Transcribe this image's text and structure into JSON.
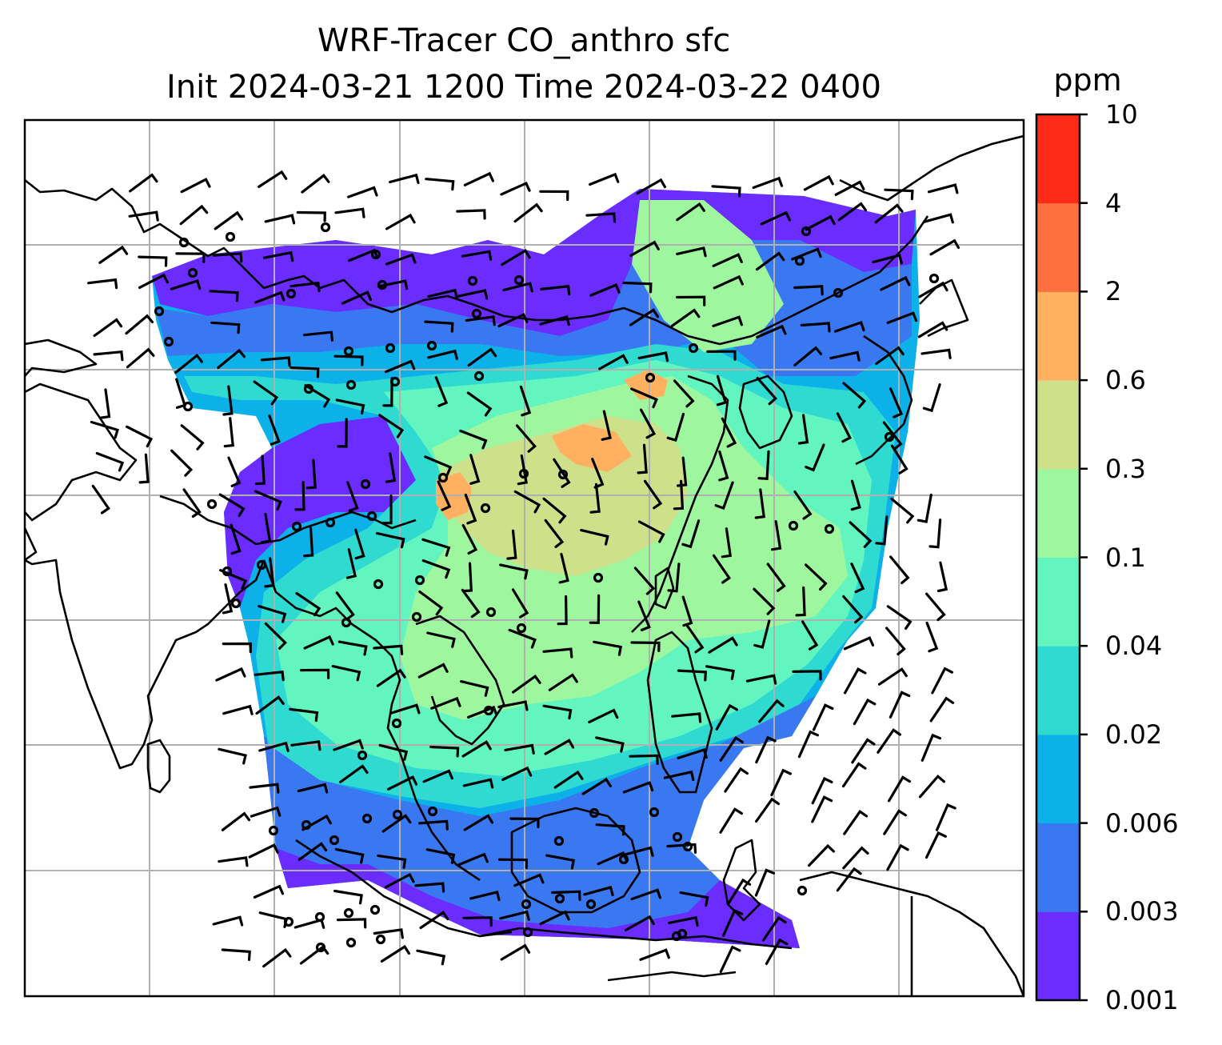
{
  "title": {
    "line1": "WRF-Tracer CO_anthro sfc",
    "line2": "Init 2024-03-21 1200 Time 2024-03-22 0400"
  },
  "variable": "CO_anthro",
  "level": "sfc",
  "init_time": "2024-03-21 1200",
  "valid_time": "2024-03-22 0400",
  "colorbar": {
    "units": "ppm",
    "ticks": [
      "0.001",
      "0.003",
      "0.006",
      "0.02",
      "0.04",
      "0.1",
      "0.3",
      "0.6",
      "2",
      "4",
      "10"
    ],
    "colors": [
      "#6a2cff",
      "#3a78f2",
      "#0cb1ea",
      "#2fdbd0",
      "#62f5c0",
      "#9ef79e",
      "#cfe08a",
      "#ffb060",
      "#ff7040",
      "#ff2a18"
    ]
  },
  "colors": {
    "coastline": "#000000",
    "gridlines": "#b0b0b0",
    "wind_barbs": "#000000",
    "frame": "#000000"
  },
  "map": {
    "gridlines": true,
    "coastlines": true,
    "wind_barbs": true,
    "calm_circles": true
  }
}
